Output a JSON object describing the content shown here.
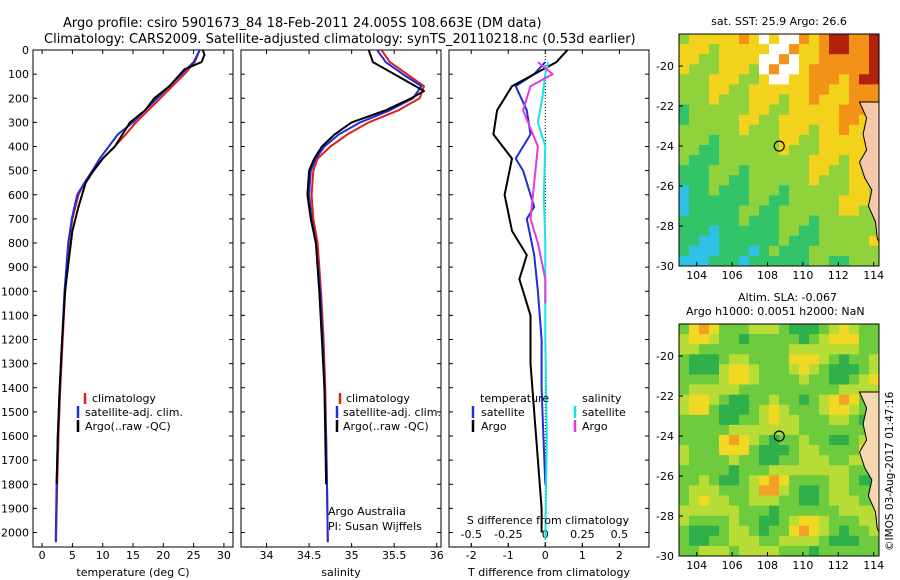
{
  "header": {
    "line1": "Argo profile: csiro 5901673_84 18-Feb-2011 24.005S 108.663E (DM data)",
    "line2": "Climatology: CARS2009. Satellite-adjusted climatology: synTS_20110218.nc (0.53d earlier)"
  },
  "colors": {
    "climatology": "#e0201a",
    "satellite": "#1f2fd6",
    "argo": "#000000",
    "s_sat": "#19e3e8",
    "s_argo": "#e23ae0"
  },
  "side_text": "©IMOS 03-Aug-2017 01:47:16",
  "chart_data": [
    {
      "type": "line",
      "name": "temperature",
      "xlabel": "temperature (deg C)",
      "ylabel": "",
      "xlim": [
        -1.5,
        31.5
      ],
      "ylim": [
        2060,
        0
      ],
      "xticks": [
        "0",
        "5",
        "10",
        "15",
        "20",
        "25",
        "30"
      ],
      "xtick_values": [
        0,
        5,
        10,
        15,
        20,
        25,
        30
      ],
      "yticks": [
        "0",
        "100",
        "200",
        "300",
        "400",
        "500",
        "600",
        "700",
        "800",
        "900",
        "1000",
        "1100",
        "1200",
        "1300",
        "1400",
        "1500",
        "1600",
        "1700",
        "1800",
        "1900",
        "2000"
      ],
      "ytick_values": [
        0,
        100,
        200,
        300,
        400,
        500,
        600,
        700,
        800,
        900,
        1000,
        1100,
        1200,
        1300,
        1400,
        1500,
        1600,
        1700,
        1800,
        1900,
        2000
      ],
      "legend": [
        "climatology",
        "satellite-adj. clim.",
        "Argo(..raw -QC)"
      ],
      "series": [
        {
          "name": "climatology",
          "color_key": "climatology",
          "x": [
            26.0,
            25.2,
            23.5,
            21.5,
            19.5,
            17.5,
            15.5,
            13.8,
            12.0,
            10.0,
            8.5,
            7.0,
            6.0,
            5.0,
            4.4,
            3.8,
            3.4,
            3.0,
            2.7,
            2.5,
            2.3
          ],
          "y": [
            0,
            50,
            100,
            150,
            200,
            250,
            300,
            350,
            400,
            450,
            500,
            550,
            600,
            700,
            800,
            1000,
            1200,
            1400,
            1600,
            1800,
            2040
          ]
        },
        {
          "name": "satellite-adj. clim.",
          "color_key": "satellite",
          "x": [
            26.0,
            25.0,
            23.0,
            21.0,
            19.0,
            17.0,
            15.0,
            12.5,
            11.0,
            9.5,
            8.3,
            7.0,
            5.8,
            4.9,
            4.3,
            3.7,
            3.3,
            2.9,
            2.6,
            2.4,
            2.25
          ],
          "y": [
            0,
            50,
            100,
            150,
            200,
            250,
            300,
            350,
            400,
            450,
            500,
            550,
            600,
            700,
            800,
            1000,
            1200,
            1400,
            1600,
            1800,
            2040
          ]
        },
        {
          "name": "Argo(..raw -QC)",
          "color_key": "argo",
          "x": [
            26.5,
            26.8,
            26.3,
            23.5,
            21.0,
            18.5,
            17.0,
            14.5,
            12.0,
            10.0,
            8.5,
            7.2,
            6.0,
            5.0,
            4.5,
            3.8,
            3.3,
            2.9,
            2.6,
            2.4
          ],
          "y": [
            0,
            20,
            50,
            80,
            150,
            200,
            250,
            300,
            400,
            450,
            500,
            550,
            650,
            750,
            850,
            1000,
            1200,
            1400,
            1600,
            1800
          ]
        }
      ],
      "legend_position": "lower-middle"
    },
    {
      "type": "line",
      "name": "salinity",
      "xlabel": "salinity",
      "xlim": [
        33.7,
        36.05
      ],
      "ylim": [
        2060,
        0
      ],
      "xticks": [
        "34",
        "34.5",
        "35",
        "35.5",
        "36"
      ],
      "xtick_values": [
        34,
        34.5,
        35,
        35.5,
        36
      ],
      "legend": [
        "climatology",
        "satellite-adj. clim.",
        "Argo(..raw -QC)"
      ],
      "series": [
        {
          "name": "climatology",
          "color_key": "climatology",
          "x": [
            35.35,
            35.45,
            35.65,
            35.85,
            35.8,
            35.55,
            35.2,
            34.95,
            34.75,
            34.6,
            34.55,
            34.53,
            34.55,
            34.6,
            34.64,
            34.67,
            34.69,
            34.7,
            34.71,
            34.72
          ],
          "y": [
            0,
            50,
            100,
            150,
            200,
            250,
            300,
            350,
            400,
            450,
            500,
            600,
            700,
            800,
            1000,
            1200,
            1400,
            1600,
            1800,
            2040
          ]
        },
        {
          "name": "satellite-adj. clim.",
          "color_key": "satellite",
          "x": [
            35.3,
            35.4,
            35.6,
            35.82,
            35.72,
            35.45,
            35.1,
            34.85,
            34.68,
            34.58,
            34.52,
            34.5,
            34.53,
            34.58,
            34.63,
            34.66,
            34.68,
            34.7,
            34.71,
            34.72
          ],
          "y": [
            0,
            50,
            100,
            150,
            200,
            250,
            300,
            350,
            400,
            450,
            500,
            600,
            700,
            800,
            1000,
            1200,
            1400,
            1600,
            1800,
            2040
          ]
        },
        {
          "name": "Argo(..raw -QC)",
          "color_key": "argo",
          "x": [
            35.2,
            35.25,
            35.5,
            35.85,
            35.7,
            35.4,
            35.0,
            34.8,
            34.65,
            34.56,
            34.5,
            34.48,
            34.52,
            34.58,
            34.62,
            34.65,
            34.68,
            34.69,
            34.7
          ],
          "y": [
            0,
            50,
            100,
            170,
            200,
            250,
            300,
            350,
            400,
            450,
            500,
            600,
            700,
            800,
            1000,
            1200,
            1400,
            1600,
            1800
          ]
        }
      ],
      "legend_position": "lower-middle",
      "annotation": [
        "Argo Australia",
        "PI: Susan Wijffels"
      ]
    },
    {
      "type": "line",
      "name": "difference",
      "xlabel": "T difference from climatology",
      "xlim_T": [
        -2.6,
        2.8
      ],
      "xticks_T": [
        "-2",
        "-1",
        "0",
        "1",
        "2"
      ],
      "xtick_values_T": [
        -2,
        -1,
        0,
        1,
        2
      ],
      "xlabel_top": "S difference from climatology",
      "xticks_S": [
        "-0.5",
        "-0.25",
        "0",
        "0.25",
        "0.5"
      ],
      "xtick_values_S": [
        -0.5,
        -0.25,
        0,
        0.25,
        0.5
      ],
      "xlim_S": [
        -0.65,
        0.7
      ],
      "ylim": [
        2060,
        0
      ],
      "legend_T_title": "temperature",
      "legend_S_title": "salinity",
      "legend_T": [
        "satellite",
        "Argo"
      ],
      "legend_S": [
        "satellite",
        "Argo"
      ],
      "series": [
        {
          "name": "T satellite",
          "color_key": "satellite",
          "x": [
            0,
            -0.3,
            -0.8,
            -0.5,
            -0.4,
            -0.8,
            -0.6,
            -0.5,
            -0.3,
            -0.5,
            -0.3,
            -0.2,
            -0.1,
            -0.1,
            -0.05,
            0
          ],
          "y": [
            50,
            100,
            150,
            250,
            350,
            450,
            500,
            550,
            650,
            700,
            850,
            1000,
            1200,
            1400,
            1600,
            1800
          ]
        },
        {
          "name": "T Argo",
          "color_key": "argo",
          "x": [
            0.6,
            0.3,
            -0.3,
            -0.9,
            -1.3,
            -1.4,
            -0.9,
            -1.1,
            -0.9,
            -0.5,
            -0.7,
            -0.4,
            -0.4,
            -0.3,
            -0.2,
            -0.1,
            -0.1
          ],
          "y": [
            0,
            50,
            100,
            150,
            250,
            350,
            450,
            600,
            750,
            850,
            950,
            1100,
            1300,
            1500,
            1700,
            1900,
            2000
          ]
        },
        {
          "name": "S satellite",
          "color_key": "s_sat",
          "x": [
            0.02,
            0.0,
            -0.02,
            -0.05,
            0.0,
            -0.01,
            0.0,
            0.0,
            0.0,
            0.01,
            0.0
          ],
          "y": [
            50,
            100,
            200,
            300,
            400,
            600,
            800,
            1000,
            1200,
            1600,
            2030
          ]
        },
        {
          "name": "S Argo",
          "color_key": "s_argo",
          "x": [
            -0.05,
            0.05,
            -0.1,
            -0.15,
            -0.05,
            -0.1,
            -0.05,
            0.0,
            0.0
          ],
          "y": [
            50,
            100,
            150,
            250,
            400,
            700,
            800,
            950,
            1050
          ]
        }
      ]
    },
    {
      "type": "heatmap",
      "name": "sst_map",
      "title": "sat. SST: 25.9 Argo: 26.6",
      "xticks": [
        "104",
        "106",
        "108",
        "110",
        "112",
        "114"
      ],
      "xtick_values": [
        104,
        106,
        108,
        110,
        112,
        114
      ],
      "yticks": [
        "-20",
        "-22",
        "-24",
        "-26",
        "-28",
        "-30"
      ],
      "ytick_values": [
        -20,
        -22,
        -24,
        -26,
        -28,
        -30
      ],
      "xlim": [
        103,
        114.3
      ],
      "ylim": [
        -30,
        -18.4
      ],
      "argo_position": [
        108.663,
        -24.005
      ]
    },
    {
      "type": "heatmap",
      "name": "sla_map",
      "title_line1": "Altim. SLA: -0.067",
      "title_line2": "Argo h1000: 0.0051 h2000: NaN",
      "xticks": [
        "104",
        "106",
        "108",
        "110",
        "112",
        "114"
      ],
      "xtick_values": [
        104,
        106,
        108,
        110,
        112,
        114
      ],
      "yticks": [
        "-20",
        "-22",
        "-24",
        "-26",
        "-28",
        "-30"
      ],
      "ytick_values": [
        -20,
        -22,
        -24,
        -26,
        -28,
        -30
      ],
      "xlim": [
        103,
        114.3
      ],
      "ylim": [
        -30,
        -18.4
      ],
      "argo_position": [
        108.663,
        -24.005
      ]
    }
  ]
}
